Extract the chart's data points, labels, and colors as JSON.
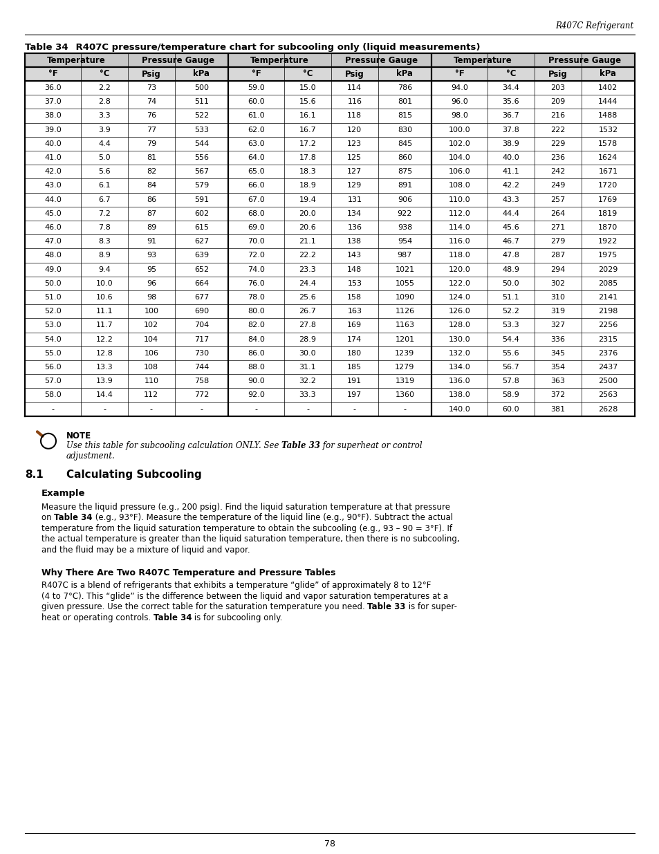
{
  "header_right": "R407C Refrigerant",
  "table_title_bold": "Table 34",
  "table_title_rest": "    R407C pressure/temperature chart for subcooling only (liquid measurements)",
  "col_headers_row1": [
    "Temperature",
    "Pressure Gauge",
    "Temperature",
    "Pressure Gauge",
    "Temperature",
    "Pressure Gauge"
  ],
  "col_headers_row2": [
    "°F",
    "°C",
    "Psig",
    "kPa",
    "°F",
    "°C",
    "Psig",
    "kPa",
    "°F",
    "°C",
    "Psig",
    "kPa"
  ],
  "table_data": [
    [
      "36.0",
      "2.2",
      "73",
      "500",
      "59.0",
      "15.0",
      "114",
      "786",
      "94.0",
      "34.4",
      "203",
      "1402"
    ],
    [
      "37.0",
      "2.8",
      "74",
      "511",
      "60.0",
      "15.6",
      "116",
      "801",
      "96.0",
      "35.6",
      "209",
      "1444"
    ],
    [
      "38.0",
      "3.3",
      "76",
      "522",
      "61.0",
      "16.1",
      "118",
      "815",
      "98.0",
      "36.7",
      "216",
      "1488"
    ],
    [
      "39.0",
      "3.9",
      "77",
      "533",
      "62.0",
      "16.7",
      "120",
      "830",
      "100.0",
      "37.8",
      "222",
      "1532"
    ],
    [
      "40.0",
      "4.4",
      "79",
      "544",
      "63.0",
      "17.2",
      "123",
      "845",
      "102.0",
      "38.9",
      "229",
      "1578"
    ],
    [
      "41.0",
      "5.0",
      "81",
      "556",
      "64.0",
      "17.8",
      "125",
      "860",
      "104.0",
      "40.0",
      "236",
      "1624"
    ],
    [
      "42.0",
      "5.6",
      "82",
      "567",
      "65.0",
      "18.3",
      "127",
      "875",
      "106.0",
      "41.1",
      "242",
      "1671"
    ],
    [
      "43.0",
      "6.1",
      "84",
      "579",
      "66.0",
      "18.9",
      "129",
      "891",
      "108.0",
      "42.2",
      "249",
      "1720"
    ],
    [
      "44.0",
      "6.7",
      "86",
      "591",
      "67.0",
      "19.4",
      "131",
      "906",
      "110.0",
      "43.3",
      "257",
      "1769"
    ],
    [
      "45.0",
      "7.2",
      "87",
      "602",
      "68.0",
      "20.0",
      "134",
      "922",
      "112.0",
      "44.4",
      "264",
      "1819"
    ],
    [
      "46.0",
      "7.8",
      "89",
      "615",
      "69.0",
      "20.6",
      "136",
      "938",
      "114.0",
      "45.6",
      "271",
      "1870"
    ],
    [
      "47.0",
      "8.3",
      "91",
      "627",
      "70.0",
      "21.1",
      "138",
      "954",
      "116.0",
      "46.7",
      "279",
      "1922"
    ],
    [
      "48.0",
      "8.9",
      "93",
      "639",
      "72.0",
      "22.2",
      "143",
      "987",
      "118.0",
      "47.8",
      "287",
      "1975"
    ],
    [
      "49.0",
      "9.4",
      "95",
      "652",
      "74.0",
      "23.3",
      "148",
      "1021",
      "120.0",
      "48.9",
      "294",
      "2029"
    ],
    [
      "50.0",
      "10.0",
      "96",
      "664",
      "76.0",
      "24.4",
      "153",
      "1055",
      "122.0",
      "50.0",
      "302",
      "2085"
    ],
    [
      "51.0",
      "10.6",
      "98",
      "677",
      "78.0",
      "25.6",
      "158",
      "1090",
      "124.0",
      "51.1",
      "310",
      "2141"
    ],
    [
      "52.0",
      "11.1",
      "100",
      "690",
      "80.0",
      "26.7",
      "163",
      "1126",
      "126.0",
      "52.2",
      "319",
      "2198"
    ],
    [
      "53.0",
      "11.7",
      "102",
      "704",
      "82.0",
      "27.8",
      "169",
      "1163",
      "128.0",
      "53.3",
      "327",
      "2256"
    ],
    [
      "54.0",
      "12.2",
      "104",
      "717",
      "84.0",
      "28.9",
      "174",
      "1201",
      "130.0",
      "54.4",
      "336",
      "2315"
    ],
    [
      "55.0",
      "12.8",
      "106",
      "730",
      "86.0",
      "30.0",
      "180",
      "1239",
      "132.0",
      "55.6",
      "345",
      "2376"
    ],
    [
      "56.0",
      "13.3",
      "108",
      "744",
      "88.0",
      "31.1",
      "185",
      "1279",
      "134.0",
      "56.7",
      "354",
      "2437"
    ],
    [
      "57.0",
      "13.9",
      "110",
      "758",
      "90.0",
      "32.2",
      "191",
      "1319",
      "136.0",
      "57.8",
      "363",
      "2500"
    ],
    [
      "58.0",
      "14.4",
      "112",
      "772",
      "92.0",
      "33.3",
      "197",
      "1360",
      "138.0",
      "58.9",
      "372",
      "2563"
    ],
    [
      "-",
      "-",
      "-",
      "-",
      "-",
      "-",
      "-",
      "-",
      "140.0",
      "60.0",
      "381",
      "2628"
    ]
  ],
  "header_bg_color": "#d0d0d0",
  "header2_bg_color": "#e8e8e8",
  "page_num": "78",
  "background_color": "#ffffff"
}
